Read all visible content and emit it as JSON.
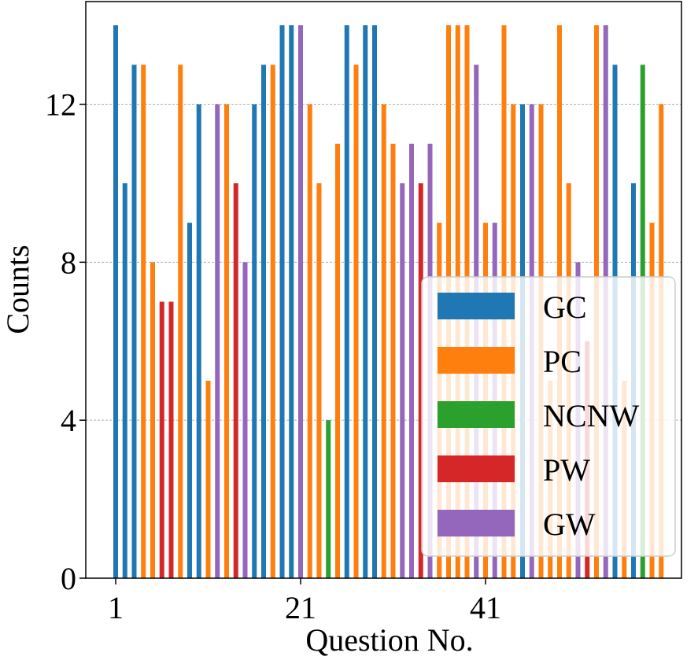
{
  "chart_data": {
    "type": "bar",
    "xlabel": "Question No.",
    "ylabel": "Counts",
    "ylim": [
      0,
      14.6
    ],
    "yticks": [
      0,
      4,
      8,
      12
    ],
    "xticks": [
      1,
      21,
      41
    ],
    "grid": "horizontal dashed",
    "legend_position": "lower-right",
    "colors": {
      "GC": "#1f77b4",
      "PC": "#ff7f0e",
      "NCNW": "#2ca02c",
      "PW": "#d62728",
      "GW": "#9467bd"
    },
    "legend": [
      "GC",
      "PC",
      "NCNW",
      "PW",
      "GW"
    ],
    "questions": [
      1,
      2,
      3,
      4,
      5,
      6,
      7,
      8,
      9,
      10,
      11,
      12,
      13,
      14,
      15,
      16,
      17,
      18,
      19,
      20,
      21,
      22,
      23,
      24,
      25,
      26,
      27,
      28,
      29,
      30,
      31,
      32,
      33,
      34,
      35,
      36,
      37,
      38,
      39,
      40,
      41,
      42,
      43,
      44,
      45,
      46,
      47,
      48,
      49,
      50,
      51,
      52,
      53,
      54,
      55,
      56,
      57,
      58,
      59,
      60
    ],
    "labels": [
      "GC",
      "GC",
      "GC",
      "PC",
      "PC",
      "PW",
      "PW",
      "PC",
      "GC",
      "GC",
      "PC",
      "GW",
      "PC",
      "PW",
      "GW",
      "GC",
      "GC",
      "PC",
      "GC",
      "GC",
      "GW",
      "PC",
      "PC",
      "NCNW",
      "PC",
      "GC",
      "PC",
      "GC",
      "GC",
      "PC",
      "PC",
      "GW",
      "GW",
      "PW",
      "GW",
      "PC",
      "PC",
      "PC",
      "PC",
      "GW",
      "PC",
      "GW",
      "PC",
      "PC",
      "GC",
      "GW",
      "PC",
      "PC",
      "PC",
      "PC",
      "GW",
      "PW",
      "PC",
      "GW",
      "GC",
      "PC",
      "GC",
      "NCNW",
      "PC",
      "PC"
    ],
    "values": [
      14,
      10,
      13,
      13,
      8,
      7,
      7,
      13,
      9,
      12,
      5,
      12,
      12,
      10,
      8,
      12,
      13,
      13,
      14,
      14,
      14,
      12,
      10,
      4,
      11,
      14,
      13,
      14,
      14,
      12,
      11,
      10,
      11,
      10,
      11,
      9,
      14,
      14,
      14,
      13,
      9,
      9,
      14,
      12,
      12,
      12,
      12,
      5,
      14,
      10,
      8,
      6,
      14,
      14,
      13,
      5,
      10,
      13,
      9,
      12
    ]
  }
}
